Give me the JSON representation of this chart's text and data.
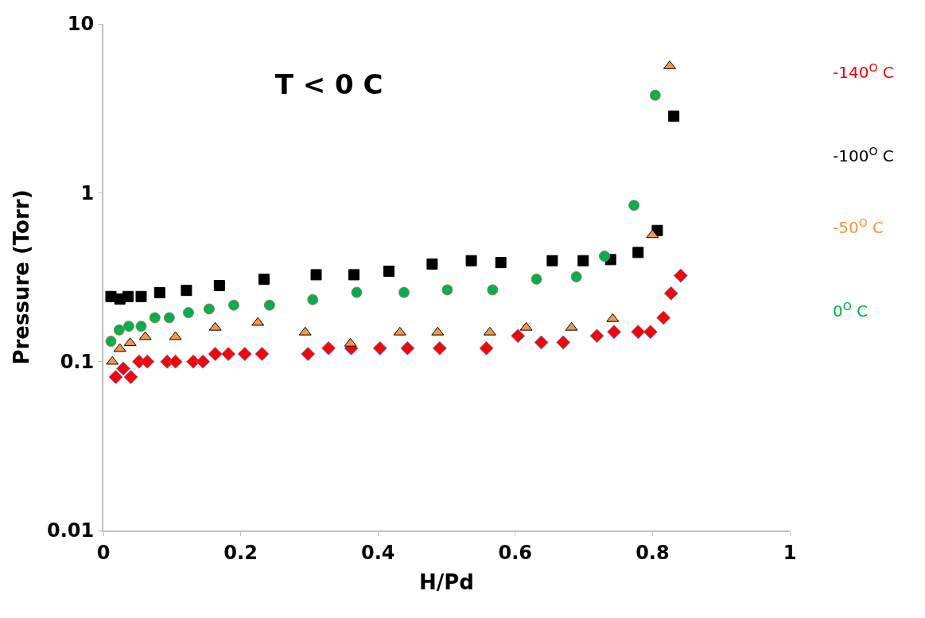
{
  "chart_data": {
    "type": "scatter",
    "title": "T < 0 C",
    "xlabel": "H/Pd",
    "ylabel": "Pressure (Torr)",
    "log": "y",
    "grid": false,
    "legend": false,
    "xlim": [
      0,
      1
    ],
    "xticks": [
      0,
      0.2,
      0.4,
      0.6,
      0.8,
      1
    ],
    "ylim": [
      0.01,
      10
    ],
    "yticks": [
      0.01,
      0.1,
      1,
      10
    ],
    "series": [
      {
        "name": "-140$^{O}$ C",
        "color": "#ff0000",
        "marker": "diamond",
        "x": [
          0.018,
          0.029,
          0.04,
          0.052,
          0.064,
          0.093,
          0.105,
          0.131,
          0.145,
          0.163,
          0.182,
          0.206,
          0.231,
          0.298,
          0.328,
          0.361,
          0.403,
          0.443,
          0.49,
          0.558,
          0.604,
          0.638,
          0.67,
          0.719,
          0.744,
          0.779,
          0.797,
          0.816,
          0.827,
          0.841
        ],
        "values": [
          0.081,
          0.091,
          0.081,
          0.1,
          0.1,
          0.1,
          0.1,
          0.1,
          0.1,
          0.111,
          0.111,
          0.111,
          0.111,
          0.111,
          0.12,
          0.12,
          0.12,
          0.12,
          0.12,
          0.12,
          0.142,
          0.13,
          0.13,
          0.142,
          0.15,
          0.15,
          0.15,
          0.182,
          0.254,
          0.323
        ]
      },
      {
        "name": "-100$^{O}$ C",
        "color": "#000000",
        "marker": "square",
        "x": [
          0.011,
          0.024,
          0.036,
          0.055,
          0.082,
          0.121,
          0.169,
          0.234,
          0.31,
          0.365,
          0.416,
          0.479,
          0.536,
          0.579,
          0.654,
          0.699,
          0.739,
          0.779,
          0.807,
          0.831
        ],
        "values": [
          0.243,
          0.235,
          0.243,
          0.243,
          0.256,
          0.264,
          0.282,
          0.307,
          0.327,
          0.327,
          0.343,
          0.378,
          0.396,
          0.386,
          0.396,
          0.396,
          0.402,
          0.443,
          0.598,
          2.84
        ]
      },
      {
        "name": "-50$^{O}$ C",
        "color": "#f79646",
        "marker": "triangle",
        "x": [
          0.013,
          0.024,
          0.039,
          0.061,
          0.105,
          0.163,
          0.225,
          0.294,
          0.36,
          0.432,
          0.487,
          0.563,
          0.616,
          0.682,
          0.742,
          0.8,
          0.825
        ],
        "values": [
          0.1,
          0.119,
          0.129,
          0.14,
          0.14,
          0.159,
          0.17,
          0.149,
          0.128,
          0.149,
          0.149,
          0.149,
          0.159,
          0.159,
          0.179,
          0.562,
          5.62
        ]
      },
      {
        "name": "0$^{O}$ C",
        "color": "#00b050",
        "marker": "circle",
        "x": [
          0.011,
          0.023,
          0.037,
          0.055,
          0.075,
          0.096,
          0.124,
          0.154,
          0.19,
          0.242,
          0.305,
          0.369,
          0.438,
          0.501,
          0.567,
          0.631,
          0.689,
          0.73,
          0.773,
          0.804
        ],
        "values": [
          0.132,
          0.154,
          0.162,
          0.162,
          0.182,
          0.182,
          0.195,
          0.205,
          0.216,
          0.216,
          0.233,
          0.257,
          0.257,
          0.266,
          0.266,
          0.308,
          0.318,
          0.421,
          0.842,
          3.78
        ]
      }
    ]
  }
}
